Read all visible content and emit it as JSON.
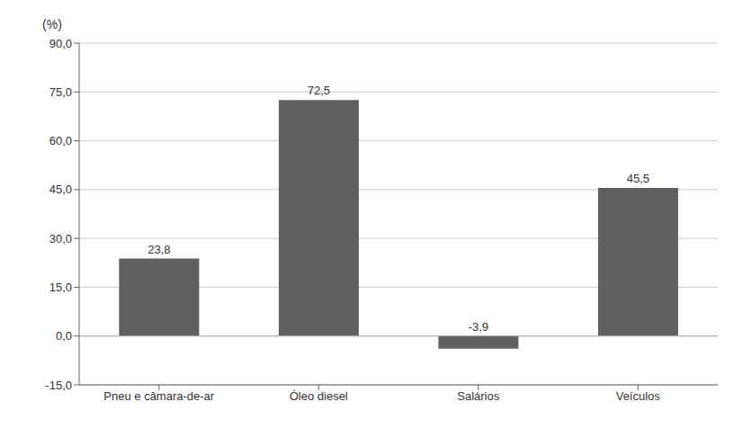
{
  "chart_data": {
    "type": "bar",
    "ylabel": "(%)",
    "categories": [
      "Pneu e câmara-de-ar",
      "Óleo diesel",
      "Salários",
      "Veículos"
    ],
    "values": [
      23.8,
      72.5,
      -3.9,
      45.5
    ],
    "value_labels": [
      "23,8",
      "72,5",
      "-3,9",
      "45,5"
    ],
    "data_labels": true,
    "color": "#606060",
    "ylim": [
      -15.0,
      90.0
    ],
    "yticks": [
      {
        "value": -15.0,
        "label": "-15,0"
      },
      {
        "value": 0.0,
        "label": "0,0"
      },
      {
        "value": 15.0,
        "label": "15,0"
      },
      {
        "value": 30.0,
        "label": "30,0"
      },
      {
        "value": 45.0,
        "label": "45,0"
      },
      {
        "value": 60.0,
        "label": "60,0"
      },
      {
        "value": 75.0,
        "label": "75,0"
      },
      {
        "value": 90.0,
        "label": "90,0"
      }
    ],
    "grid": true
  }
}
